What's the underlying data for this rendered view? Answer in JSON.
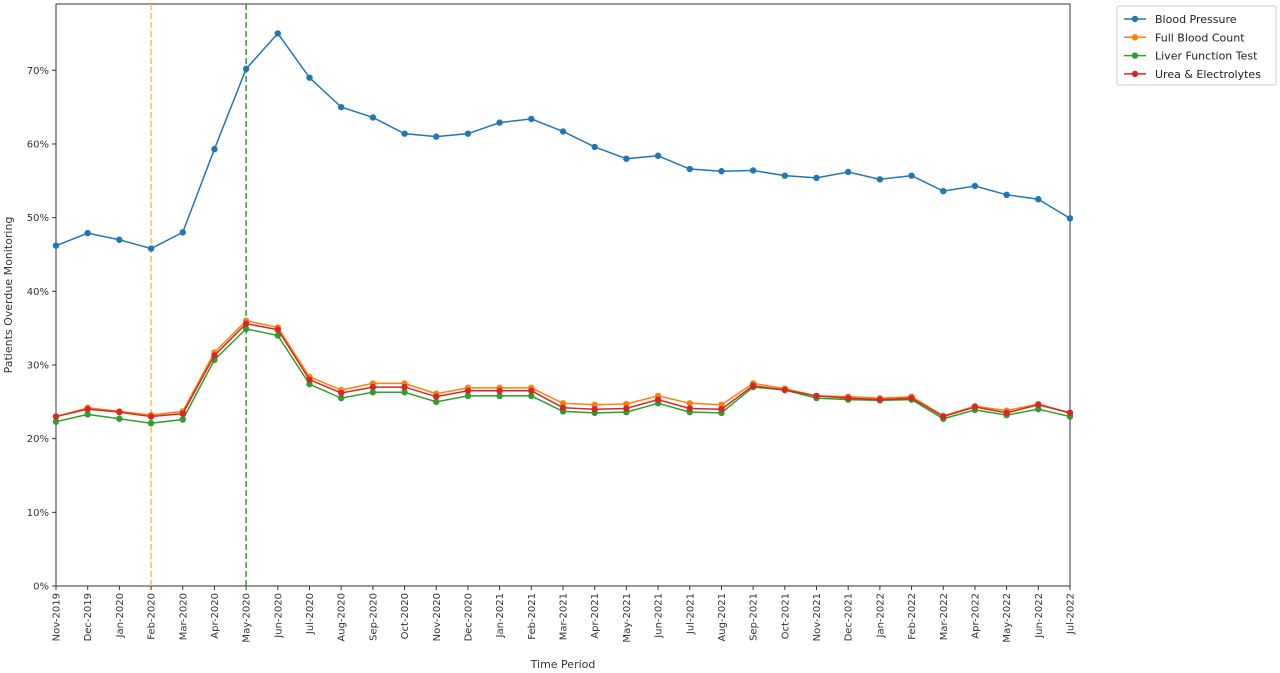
{
  "chart_data": {
    "type": "line",
    "xlabel": "Time Period",
    "ylabel": "Patients Overdue Monitoring",
    "categories": [
      "Nov-2019",
      "Dec-2019",
      "Jan-2020",
      "Feb-2020",
      "Mar-2020",
      "Apr-2020",
      "May-2020",
      "Jun-2020",
      "Jul-2020",
      "Aug-2020",
      "Sep-2020",
      "Oct-2020",
      "Nov-2020",
      "Dec-2020",
      "Jan-2021",
      "Feb-2021",
      "Mar-2021",
      "Apr-2021",
      "May-2021",
      "Jun-2021",
      "Jul-2021",
      "Aug-2021",
      "Sep-2021",
      "Oct-2021",
      "Nov-2021",
      "Dec-2021",
      "Jan-2022",
      "Feb-2022",
      "Mar-2022",
      "Apr-2022",
      "May-2022",
      "Jun-2022",
      "Jul-2022"
    ],
    "yticks": [
      "0%",
      "10%",
      "20%",
      "30%",
      "40%",
      "50%",
      "60%",
      "70%"
    ],
    "ylim": [
      0,
      0.79
    ],
    "grid": false,
    "legend_position": "outside-top-right",
    "series": [
      {
        "name": "Blood Pressure",
        "color": "#1f77b4",
        "values": [
          0.462,
          0.479,
          0.47,
          0.458,
          0.48,
          0.593,
          0.702,
          0.75,
          0.69,
          0.65,
          0.636,
          0.614,
          0.61,
          0.614,
          0.629,
          0.634,
          0.617,
          0.596,
          0.58,
          0.584,
          0.566,
          0.563,
          0.564,
          0.557,
          0.554,
          0.562,
          0.552,
          0.557,
          0.536,
          0.543,
          0.531,
          0.525,
          0.499
        ]
      },
      {
        "name": "Full Blood Count",
        "color": "#ff7f0e",
        "values": [
          0.23,
          0.242,
          0.237,
          0.232,
          0.237,
          0.317,
          0.36,
          0.351,
          0.284,
          0.266,
          0.275,
          0.275,
          0.261,
          0.269,
          0.269,
          0.269,
          0.248,
          0.246,
          0.247,
          0.258,
          0.248,
          0.246,
          0.275,
          0.268,
          0.258,
          0.257,
          0.255,
          0.257,
          0.231,
          0.244,
          0.238,
          0.247,
          0.235
        ]
      },
      {
        "name": "Liver Function Test",
        "color": "#2ca02c",
        "values": [
          0.223,
          0.233,
          0.227,
          0.221,
          0.226,
          0.307,
          0.349,
          0.34,
          0.274,
          0.255,
          0.263,
          0.263,
          0.25,
          0.258,
          0.258,
          0.258,
          0.237,
          0.235,
          0.236,
          0.248,
          0.236,
          0.235,
          0.27,
          0.266,
          0.255,
          0.253,
          0.252,
          0.253,
          0.227,
          0.239,
          0.232,
          0.24,
          0.23
        ]
      },
      {
        "name": "Urea & Electrolytes",
        "color": "#d62728",
        "values": [
          0.23,
          0.24,
          0.236,
          0.23,
          0.234,
          0.313,
          0.356,
          0.348,
          0.28,
          0.262,
          0.27,
          0.27,
          0.257,
          0.265,
          0.265,
          0.265,
          0.242,
          0.24,
          0.241,
          0.253,
          0.241,
          0.24,
          0.272,
          0.266,
          0.258,
          0.255,
          0.253,
          0.255,
          0.23,
          0.243,
          0.235,
          0.246,
          0.235
        ]
      }
    ],
    "vlines": [
      {
        "x": "Feb-2020",
        "color": "#ffbf47",
        "style": "dashed"
      },
      {
        "x": "May-2020",
        "color": "#2ca02c",
        "style": "dashed"
      }
    ]
  }
}
